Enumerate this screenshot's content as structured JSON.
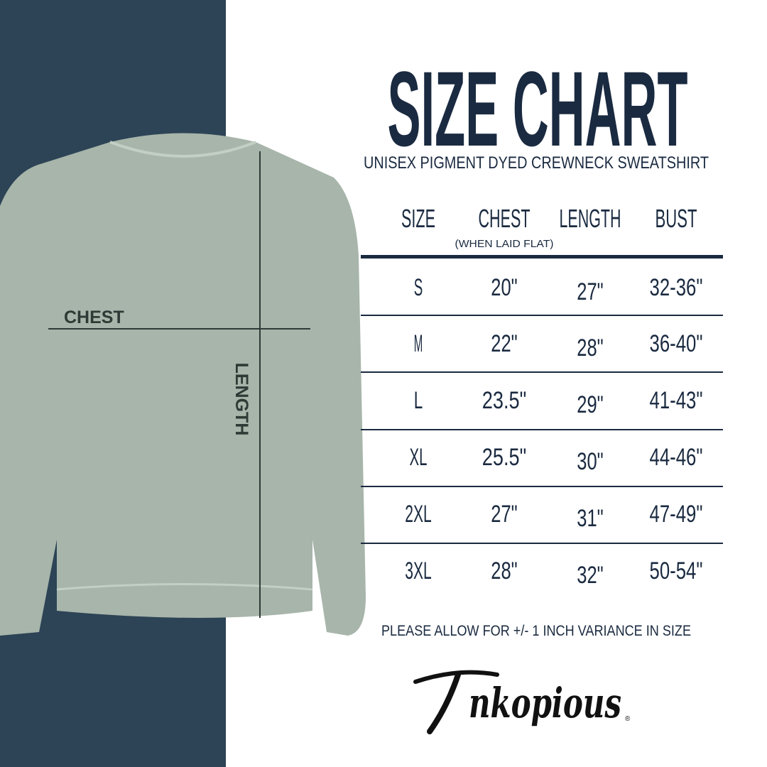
{
  "title": "SIZE CHART",
  "subtitle": "UNISEX PIGMENT DYED CREWNECK SWEATSHIRT",
  "colors": {
    "navy_panel": "#2d4356",
    "text": "#1a2a40",
    "sweatshirt": "#a7b5aa"
  },
  "diagram": {
    "chest_label": "CHEST",
    "length_label": "LENGTH"
  },
  "table": {
    "headers": [
      "SIZE",
      "CHEST",
      "LENGTH",
      "BUST"
    ],
    "chest_note": "(WHEN LAID FLAT)",
    "rows": [
      [
        "S",
        "20\"",
        "27\"",
        "32-36\""
      ],
      [
        "M",
        "22\"",
        "28\"",
        "36-40\""
      ],
      [
        "L",
        "23.5\"",
        "29\"",
        "41-43\""
      ],
      [
        "XL",
        "25.5\"",
        "30\"",
        "44-46\""
      ],
      [
        "2XL",
        "27\"",
        "31\"",
        "47-49\""
      ],
      [
        "3XL",
        "28\"",
        "32\"",
        "50-54\""
      ]
    ]
  },
  "note": "PLEASE ALLOW FOR +/- 1 INCH VARIANCE IN SIZE",
  "brand": {
    "logo_text": "Inkopious",
    "registered": "®"
  }
}
